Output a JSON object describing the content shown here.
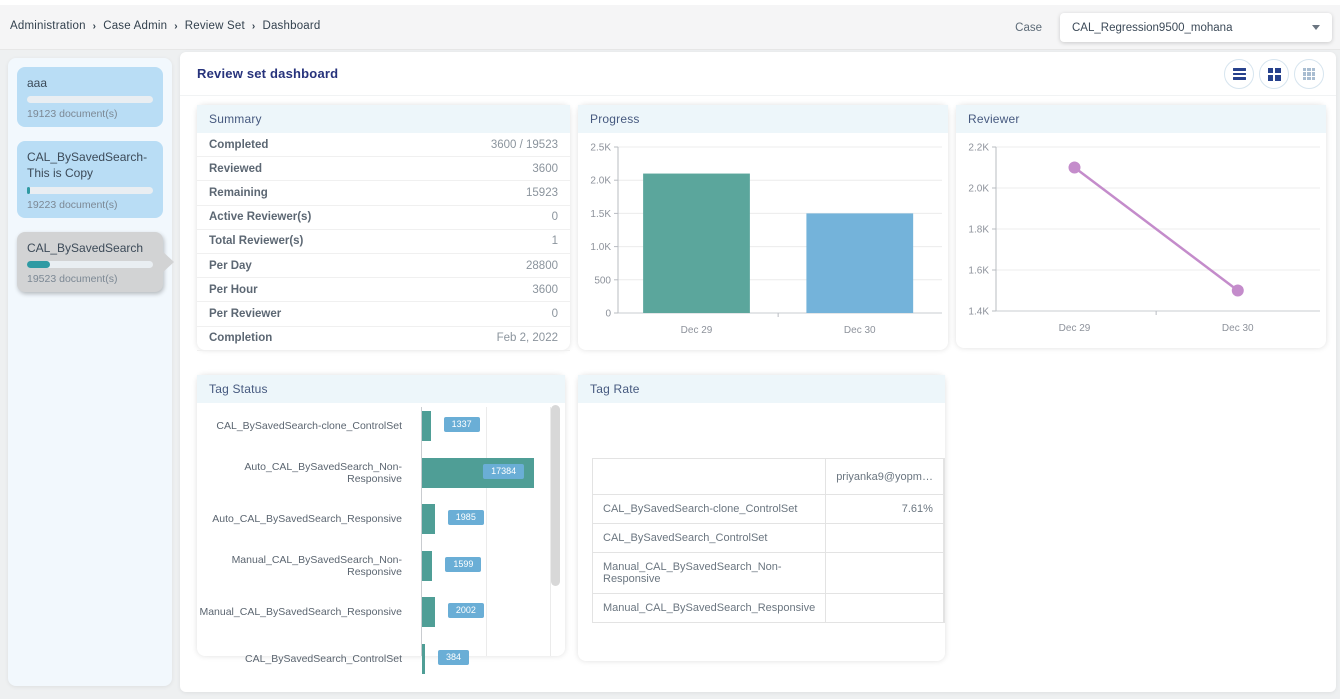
{
  "header": {
    "breadcrumb": [
      "Administration",
      "Case Admin",
      "Review Set",
      "Dashboard"
    ],
    "case_label": "Case",
    "case_value": "CAL_Regression9500_mohana"
  },
  "sidebar": {
    "review_sets": [
      {
        "name": "aaa",
        "docs": "19123 document(s)",
        "progress_pct": 0,
        "selected": false
      },
      {
        "name": "CAL_BySavedSearch-This is Copy",
        "docs": "19223 document(s)",
        "progress_pct": 2,
        "selected": false
      },
      {
        "name": "CAL_BySavedSearch",
        "docs": "19523 document(s)",
        "progress_pct": 18,
        "selected": true
      }
    ]
  },
  "main": {
    "title": "Review set dashboard",
    "view_buttons": [
      "list-view",
      "grid-2x2-view",
      "grid-3x3-view"
    ],
    "summary": {
      "title": "Summary",
      "rows": [
        {
          "label": "Completed",
          "value": "3600 / 19523"
        },
        {
          "label": "Reviewed",
          "value": "3600"
        },
        {
          "label": "Remaining",
          "value": "15923"
        },
        {
          "label": "Active Reviewer(s)",
          "value": "0"
        },
        {
          "label": "Total Reviewer(s)",
          "value": "1"
        },
        {
          "label": "Per Day",
          "value": "28800"
        },
        {
          "label": "Per Hour",
          "value": "3600"
        },
        {
          "label": "Per Reviewer",
          "value": "0"
        },
        {
          "label": "Completion",
          "value": "Feb 2, 2022"
        }
      ]
    },
    "tag_rate": {
      "title": "Tag Rate",
      "columns": [
        "",
        "priyanka9@yopm…",
        ""
      ],
      "rows": [
        {
          "label": "CAL_BySavedSearch-clone_ControlSet",
          "value": "7.61%"
        },
        {
          "label": "CAL_BySavedSearch_ControlSet",
          "value": ""
        },
        {
          "label": "Manual_CAL_BySavedSearch_Non-Responsive",
          "value": ""
        },
        {
          "label": "Manual_CAL_BySavedSearch_Responsive",
          "value": ""
        }
      ]
    }
  },
  "chart_data": [
    {
      "type": "bar",
      "title": "Progress",
      "categories": [
        "Dec 29",
        "Dec 30"
      ],
      "values": [
        2100,
        1500
      ],
      "bar_colors": [
        "#5ba69c",
        "#74b3da"
      ],
      "ylim": [
        0,
        2500
      ],
      "yticks": [
        0,
        500,
        1000,
        1500,
        2000,
        2500
      ],
      "ytick_labels": [
        "0",
        "500",
        "1.0K",
        "1.5K",
        "2.0K",
        "2.5K"
      ],
      "grid": true,
      "legend": false
    },
    {
      "type": "line",
      "title": "Reviewer",
      "x": [
        "Dec 29",
        "Dec 30"
      ],
      "values": [
        2100,
        1500
      ],
      "line_color": "#c48ccb",
      "ylim": [
        1400,
        2200
      ],
      "yticks": [
        1400,
        1600,
        1800,
        2000,
        2200
      ],
      "ytick_labels": [
        "1.4K",
        "1.6K",
        "1.8K",
        "2.0K",
        "2.2K"
      ],
      "grid": true,
      "legend": false
    },
    {
      "type": "bar",
      "orientation": "horizontal",
      "title": "Tag Status",
      "categories": [
        "CAL_BySavedSearch-clone_ControlSet",
        "Auto_CAL_BySavedSearch_Non-Responsive",
        "Auto_CAL_BySavedSearch_Responsive",
        "Manual_CAL_BySavedSearch_Non-Responsive",
        "Manual_CAL_BySavedSearch_Responsive",
        "CAL_BySavedSearch_ControlSet"
      ],
      "values": [
        1337,
        17384,
        1985,
        1599,
        2002,
        384
      ],
      "bar_color": "#4f9e96",
      "value_badge_color": "#6aaed6",
      "xlim": [
        0,
        20000
      ],
      "grid": true,
      "legend": false
    }
  ],
  "colors": {
    "accent_navy": "#27337c",
    "panel_header_bg": "#edf6fa",
    "teal_bar": "#5ba69c",
    "blue_bar": "#74b3da",
    "pink_line": "#c48ccb",
    "tag_bar_teal": "#4f9e96",
    "badge_blue": "#6aaed6",
    "sidebar_card_blue": "#b9ddf5",
    "sidebar_card_selected": "#d2d3d4",
    "progress_teal": "#2f9aa3"
  }
}
